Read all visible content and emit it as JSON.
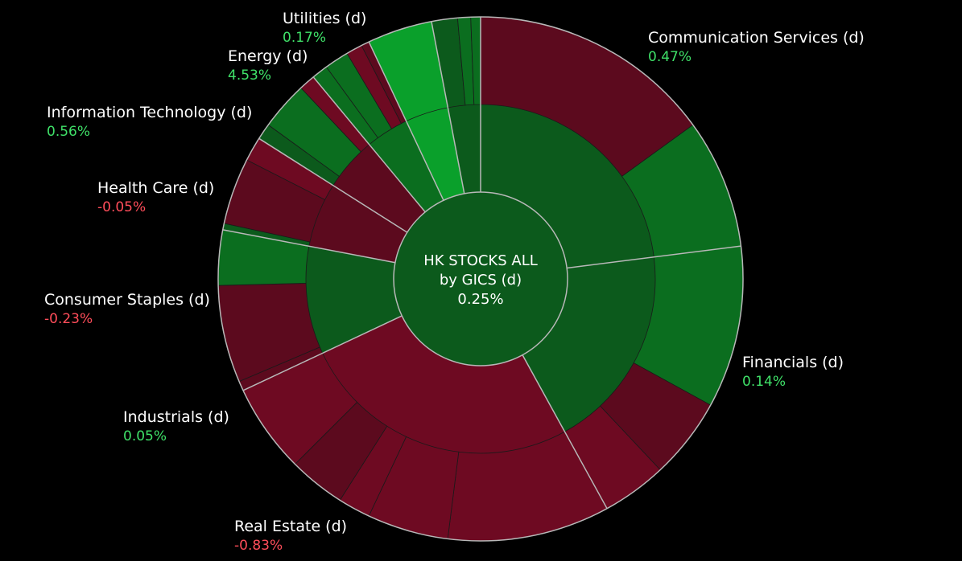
{
  "center": {
    "title_line1": "HK STOCKS ALL",
    "title_line2": "by GICS (d)",
    "value": "0.25%"
  },
  "colors": {
    "background": "#000000",
    "positive_text": "#3fe068",
    "negative_text": "#ff4d5a",
    "divider": "#b8b8b8",
    "dark_green": "#0c5a1c",
    "green": "#0b6e1f",
    "bright_green": "#0aa02b",
    "dark_red": "#5c0a1e",
    "red": "#6e0a22"
  },
  "chart_data": {
    "type": "sunburst",
    "title": "HK STOCKS ALL by GICS (d)",
    "total_change_pct": 0.25,
    "unit": "%",
    "sectors": [
      {
        "name": "Communication Services (d)",
        "change_pct": 0.47,
        "label": "0.47%",
        "weight": 23,
        "subsegments": [
          {
            "change_pct": -0.45,
            "weight": 15
          },
          {
            "change_pct": 1.2,
            "weight": 8
          }
        ]
      },
      {
        "name": "Financials (d)",
        "change_pct": 0.14,
        "label": "0.14%",
        "weight": 19,
        "subsegments": [
          {
            "change_pct": 0.6,
            "weight": 10
          },
          {
            "change_pct": -0.6,
            "weight": 5
          },
          {
            "change_pct": -0.9,
            "weight": 4
          }
        ]
      },
      {
        "name": "Real Estate (d)",
        "change_pct": -0.83,
        "label": "-0.83%",
        "weight": 26,
        "subsegments": [
          {
            "change_pct": -1.1,
            "weight": 10
          },
          {
            "change_pct": -0.8,
            "weight": 5
          },
          {
            "change_pct": -0.9,
            "weight": 2
          },
          {
            "change_pct": -0.7,
            "weight": 3.5
          },
          {
            "change_pct": -1.0,
            "weight": 5.5
          }
        ]
      },
      {
        "name": "Industrials (d)",
        "change_pct": 0.05,
        "label": "0.05%",
        "weight": 10,
        "subsegments": [
          {
            "change_pct": -0.4,
            "weight": 0.6
          },
          {
            "change_pct": -0.6,
            "weight": 6
          },
          {
            "change_pct": 0.5,
            "weight": 3.4
          }
        ]
      },
      {
        "name": "Consumer Staples (d)",
        "change_pct": -0.23,
        "label": "-0.23%",
        "weight": 6,
        "subsegments": [
          {
            "change_pct": 0.3,
            "weight": 0.4
          },
          {
            "change_pct": -0.5,
            "weight": 4.1
          },
          {
            "change_pct": -1.5,
            "weight": 1.5
          }
        ]
      },
      {
        "name": "Health Care (d)",
        "change_pct": -0.05,
        "label": "-0.05%",
        "weight": 5,
        "subsegments": [
          {
            "change_pct": 0.2,
            "weight": 1
          },
          {
            "change_pct": 0.6,
            "weight": 3
          },
          {
            "change_pct": -1.1,
            "weight": 1
          }
        ]
      },
      {
        "name": "Information Technology (d)",
        "change_pct": 0.56,
        "label": "0.56%",
        "weight": 4,
        "subsegments": [
          {
            "change_pct": 0.8,
            "weight": 1
          },
          {
            "change_pct": 1.0,
            "weight": 1.5
          },
          {
            "change_pct": -0.9,
            "weight": 1
          },
          {
            "change_pct": -0.7,
            "weight": 0.5
          }
        ]
      },
      {
        "name": "Energy (d)",
        "change_pct": 4.53,
        "label": "4.53%",
        "weight": 4,
        "subsegments": [
          {
            "change_pct": 4.53,
            "weight": 4
          }
        ]
      },
      {
        "name": "Utilities (d)",
        "change_pct": 0.17,
        "label": "0.17%",
        "weight": 3,
        "subsegments": [
          {
            "change_pct": 0.4,
            "weight": 1.6
          },
          {
            "change_pct": 0.6,
            "weight": 0.8
          },
          {
            "change_pct": 0.7,
            "weight": 0.6
          }
        ]
      }
    ]
  }
}
